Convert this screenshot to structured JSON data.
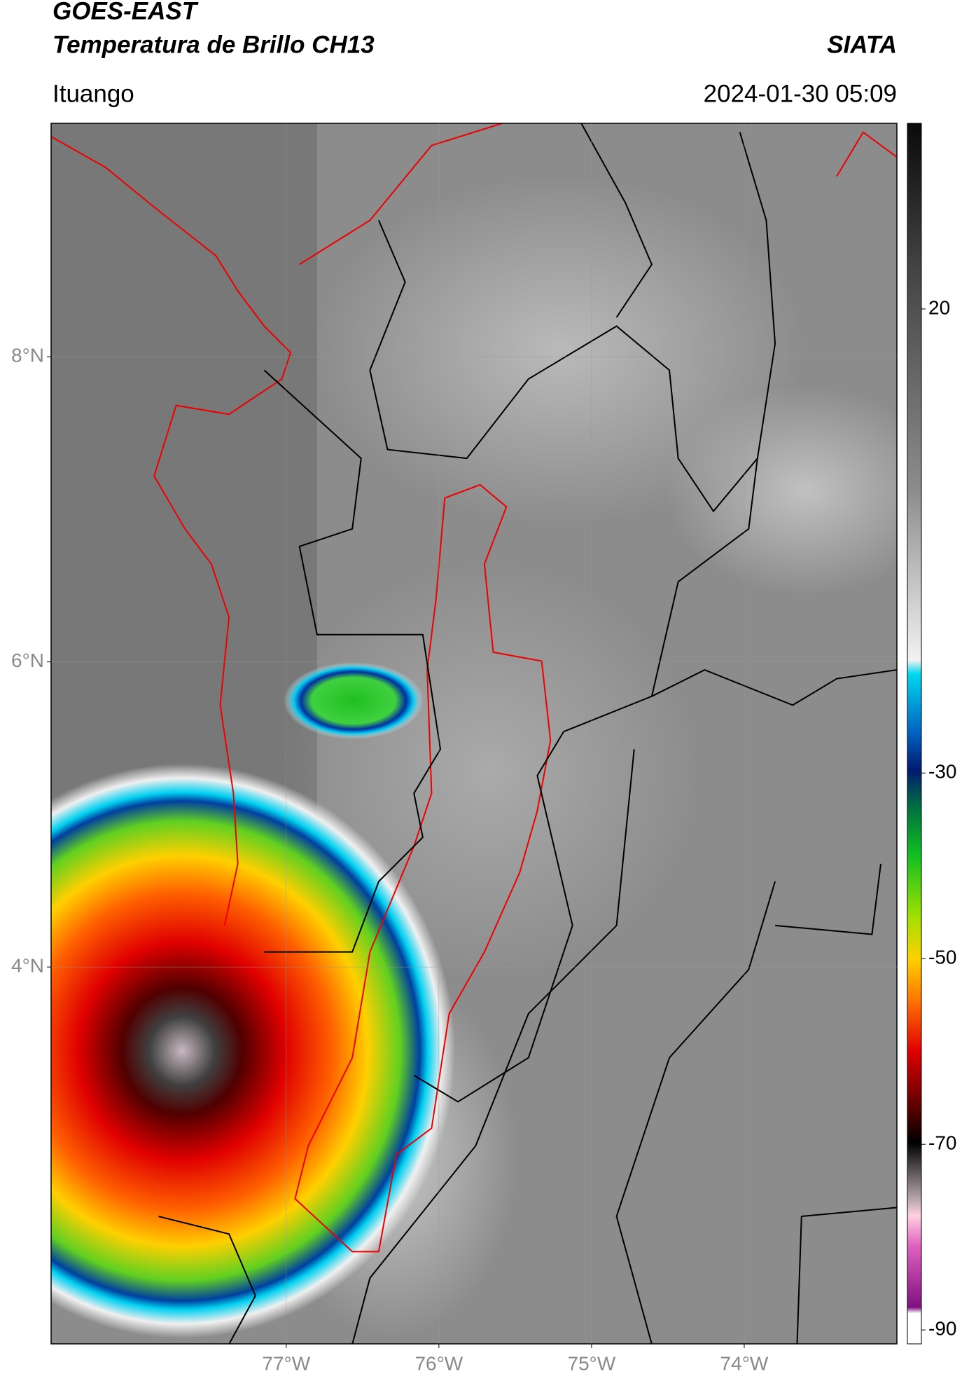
{
  "header": {
    "title": "GOES-EAST",
    "subtitle": "Temperatura de Brillo CH13",
    "source": "SIATA",
    "location": "Ituango",
    "datetime": "2024-01-30 05:09"
  },
  "map": {
    "xlim": [
      -78.54,
      -73.0
    ],
    "ylim": [
      1.53,
      9.53
    ],
    "xticks": [
      {
        "value": -77,
        "label": "77°W"
      },
      {
        "value": -76,
        "label": "76°W"
      },
      {
        "value": -75,
        "label": "75°W"
      },
      {
        "value": -74,
        "label": "74°W"
      }
    ],
    "yticks": [
      {
        "value": 4,
        "label": "4°N"
      },
      {
        "value": 6,
        "label": "6°N"
      },
      {
        "value": 8,
        "label": "8°N"
      }
    ],
    "grid": true
  },
  "colorbar": {
    "lim": [
      -91.5,
      40
    ],
    "ticks": [
      20,
      -30,
      -50,
      -70,
      -90
    ]
  }
}
